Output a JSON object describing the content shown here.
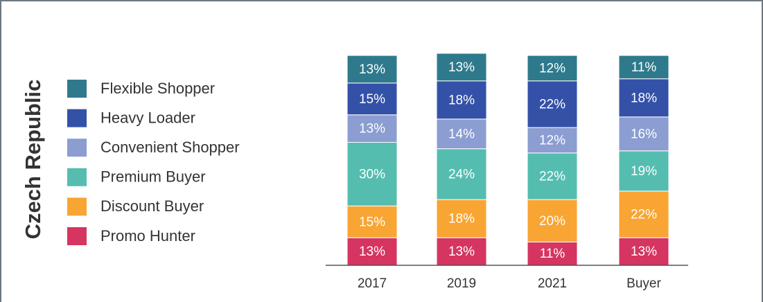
{
  "chart_data": {
    "type": "stacked_bar",
    "title": "Czech Republic",
    "categories": [
      "2017",
      "2019",
      "2021",
      "Buyer"
    ],
    "ylim": [
      0,
      100
    ],
    "series": [
      {
        "name": "Flexible Shopper",
        "color": "#2e7a8c",
        "values": [
          13,
          13,
          12,
          11
        ],
        "value_labels": [
          "13%",
          "13%",
          "12%",
          "11%"
        ]
      },
      {
        "name": "Heavy Loader",
        "color": "#3451a8",
        "values": [
          15,
          18,
          22,
          18
        ],
        "value_labels": [
          "15%",
          "18%",
          "22%",
          "18%"
        ]
      },
      {
        "name": "Convenient Shopper",
        "color": "#8b9dd1",
        "values": [
          13,
          14,
          12,
          16
        ],
        "value_labels": [
          "13%",
          "14%",
          "12%",
          "16%"
        ]
      },
      {
        "name": "Premium Buyer",
        "color": "#55bdb0",
        "values": [
          30,
          24,
          22,
          19
        ],
        "value_labels": [
          "30%",
          "24%",
          "22%",
          "19%"
        ]
      },
      {
        "name": "Discount Buyer",
        "color": "#f9a533",
        "values": [
          15,
          18,
          20,
          22
        ],
        "value_labels": [
          "15%",
          "18%",
          "20%",
          "22%"
        ]
      },
      {
        "name": "Promo Hunter",
        "color": "#d63461",
        "values": [
          13,
          13,
          11,
          13
        ],
        "value_labels": [
          "13%",
          "13%",
          "11%",
          "13%"
        ]
      }
    ]
  }
}
